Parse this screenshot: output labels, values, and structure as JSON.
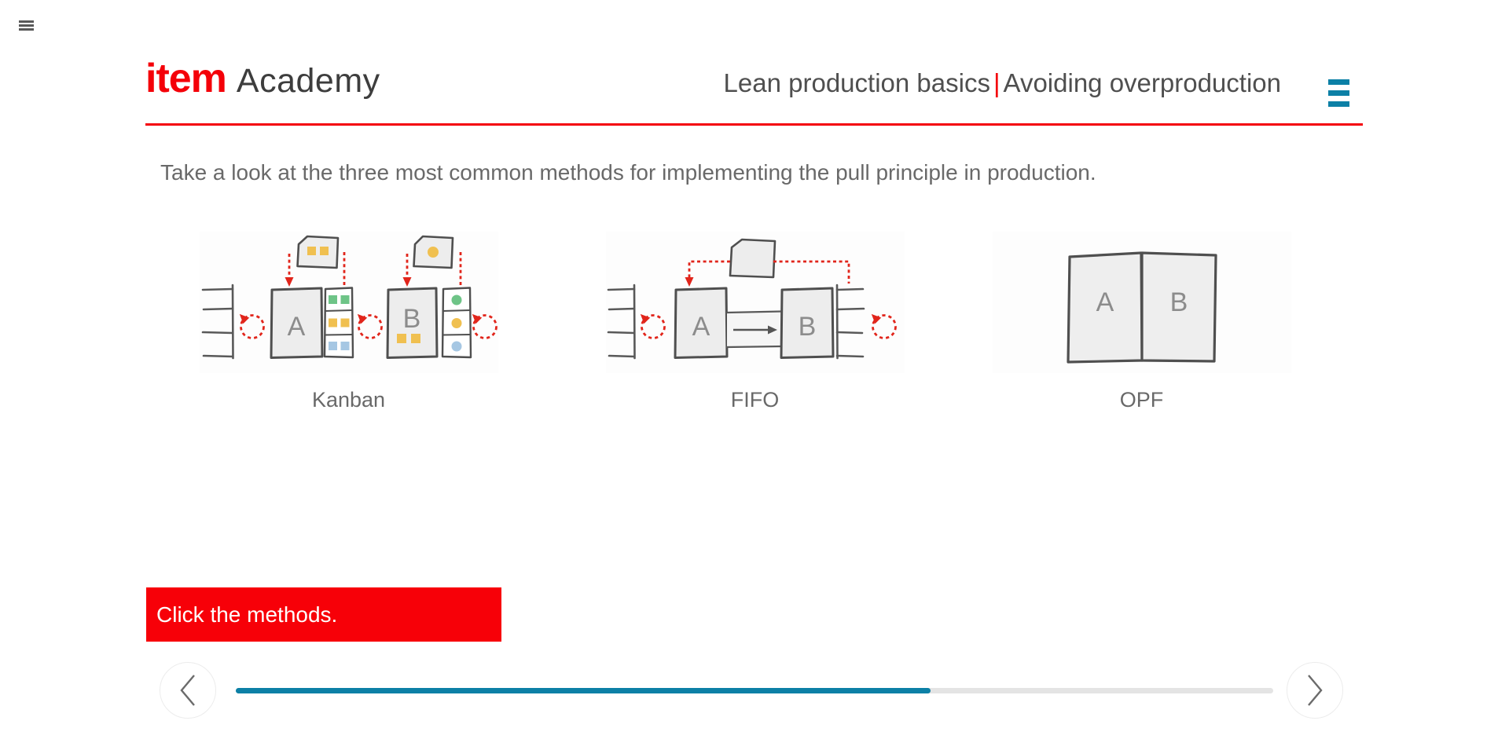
{
  "window": {
    "corner_menu_icon": "hamburger"
  },
  "header": {
    "logo_primary": "item",
    "logo_secondary": "Academy",
    "course_title": "Lean production basics",
    "title_separator": "|",
    "lesson_title": "Avoiding overproduction",
    "menu_icon": "hamburger"
  },
  "main": {
    "instruction": "Take a look at the three most common methods for implementing the pull principle in production.",
    "methods": [
      {
        "label": "Kanban"
      },
      {
        "label": "FIFO"
      },
      {
        "label": "OPF"
      }
    ],
    "diagram": {
      "letter_a": "A",
      "letter_b": "B"
    }
  },
  "banner": {
    "text": "Click the methods."
  },
  "player": {
    "progress_percent": 67
  },
  "colors": {
    "brand_red": "#f40009",
    "banner_red": "#f70008",
    "diagram_red": "#e1251b",
    "accent_teal": "#0c80a6",
    "progress_track": "#e4e4e4",
    "marker_green": "#6ec487",
    "marker_yellow": "#f0c050",
    "marker_blue": "#a6c7e3",
    "text_gray": "#696969"
  }
}
